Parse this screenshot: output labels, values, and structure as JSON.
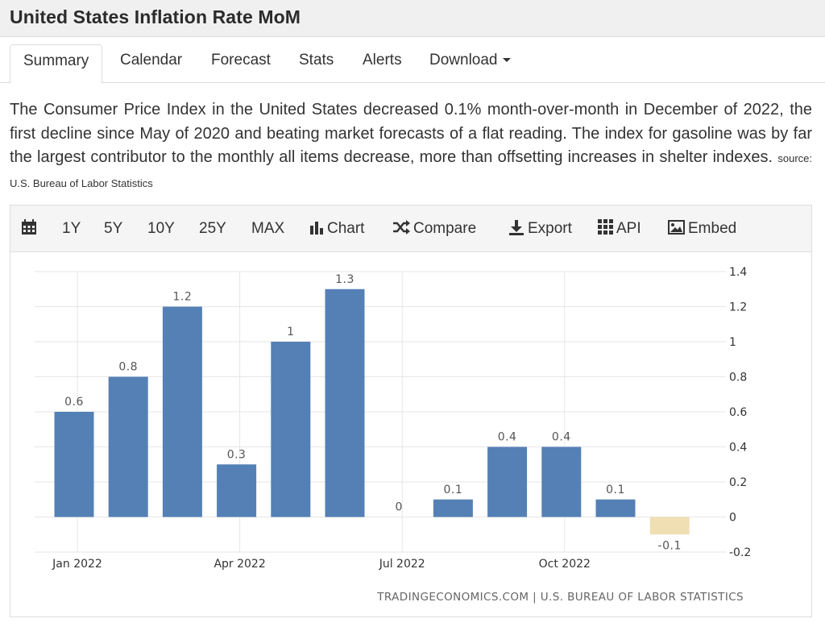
{
  "page": {
    "title": "United States Inflation Rate MoM"
  },
  "tabs": [
    {
      "label": "Summary",
      "active": true
    },
    {
      "label": "Calendar"
    },
    {
      "label": "Forecast"
    },
    {
      "label": "Stats"
    },
    {
      "label": "Alerts"
    },
    {
      "label": "Download"
    }
  ],
  "description": {
    "text": "The Consumer Price Index in the United States decreased 0.1% month-over-month in December of 2022, the first decline since May of 2020 and beating market forecasts of a flat reading. The index for gasoline was by far the largest contributor to the monthly all items decrease, more than offsetting increases in shelter indexes.",
    "source": "source: U.S. Bureau of Labor Statistics"
  },
  "toolbar": {
    "ranges": [
      "1Y",
      "5Y",
      "10Y",
      "25Y",
      "MAX"
    ],
    "chart_label": "Chart",
    "compare_label": "Compare",
    "export_label": "Export",
    "api_label": "API",
    "embed_label": "Embed"
  },
  "colors": {
    "positive_bar": "#5480b5",
    "negative_bar": "#f0dfb3",
    "grid": "#e6e6e6"
  },
  "chart_data": {
    "type": "bar",
    "title": "United States Inflation Rate MoM",
    "categories": [
      "Jan 2022",
      "Feb 2022",
      "Mar 2022",
      "Apr 2022",
      "May 2022",
      "Jun 2022",
      "Jul 2022",
      "Aug 2022",
      "Sep 2022",
      "Oct 2022",
      "Nov 2022",
      "Dec 2022"
    ],
    "values": [
      0.6,
      0.8,
      1.2,
      0.3,
      1.0,
      1.3,
      0,
      0.1,
      0.4,
      0.4,
      0.1,
      -0.1
    ],
    "data_labels": [
      "0.6",
      "0.8",
      "1.2",
      "0.3",
      "1",
      "1.3",
      "0",
      "0.1",
      "0.4",
      "0.4",
      "0.1",
      "-0.1"
    ],
    "x_tick_labels": [
      {
        "label": "Jan 2022",
        "index": 0
      },
      {
        "label": "Apr 2022",
        "index": 3
      },
      {
        "label": "Jul 2022",
        "index": 6
      },
      {
        "label": "Oct 2022",
        "index": 9
      }
    ],
    "y_ticks": [
      -0.2,
      0,
      0.2,
      0.4,
      0.6,
      0.8,
      1,
      1.2,
      1.4
    ],
    "y_tick_labels": [
      "-0.2",
      "0",
      "0.2",
      "0.4",
      "0.6",
      "0.8",
      "1",
      "1.2",
      "1.4"
    ],
    "ylim": [
      -0.2,
      1.4
    ],
    "y_axis_side": "right",
    "grid": true,
    "xlabel": "",
    "ylabel": "",
    "credit": "TRADINGECONOMICS.COM | U.S. BUREAU OF LABOR STATISTICS"
  }
}
